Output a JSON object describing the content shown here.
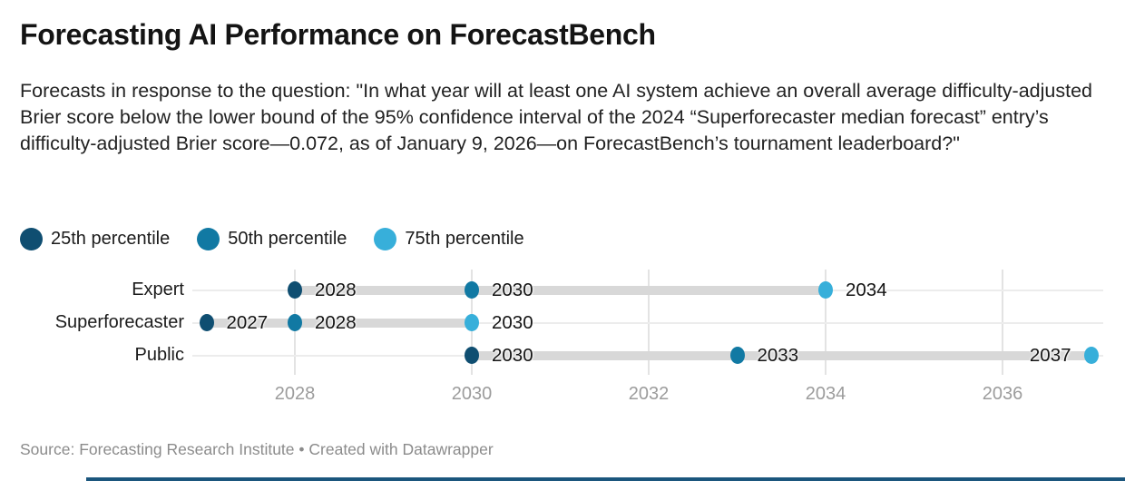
{
  "header": {
    "title": "Forecasting AI Performance on ForecastBench",
    "subtitle": "Forecasts in response to the question: \"In what year will at least one AI system achieve an overall average difficulty-adjusted Brier score below the lower bound of the 95% confidence interval of the 2024 “Superforecaster median forecast” entry’s difficulty-adjusted Brier score—0.072, as of January 9, 2026—on ForecastBench’s tournament leaderboard?\""
  },
  "chart_data": {
    "type": "scatter",
    "subtype": "dot-range-plot",
    "grid": true,
    "x_domain": [
      2027,
      2037
    ],
    "x_ticks": [
      2028,
      2030,
      2032,
      2034,
      2036
    ],
    "series": [
      {
        "key": "p25",
        "name": "25th percentile",
        "color": "#0f4e71"
      },
      {
        "key": "p50",
        "name": "50th percentile",
        "color": "#1179a3"
      },
      {
        "key": "p75",
        "name": "75th percentile",
        "color": "#37afda"
      }
    ],
    "rows": [
      {
        "label": "Expert",
        "p25": 2028,
        "p50": 2030,
        "p75": 2034,
        "label_left": []
      },
      {
        "label": "Superforecaster",
        "p25": 2027,
        "p50": 2028,
        "p75": 2030,
        "label_left": []
      },
      {
        "label": "Public",
        "p25": 2030,
        "p50": 2033,
        "p75": 2037,
        "label_left": [
          "p75"
        ]
      }
    ]
  },
  "footer": {
    "source_prefix": "Source: ",
    "source_name": "Forecasting Research Institute",
    "separator": " • ",
    "credit_prefix": "Created with ",
    "credit_name": "Datawrapper"
  }
}
